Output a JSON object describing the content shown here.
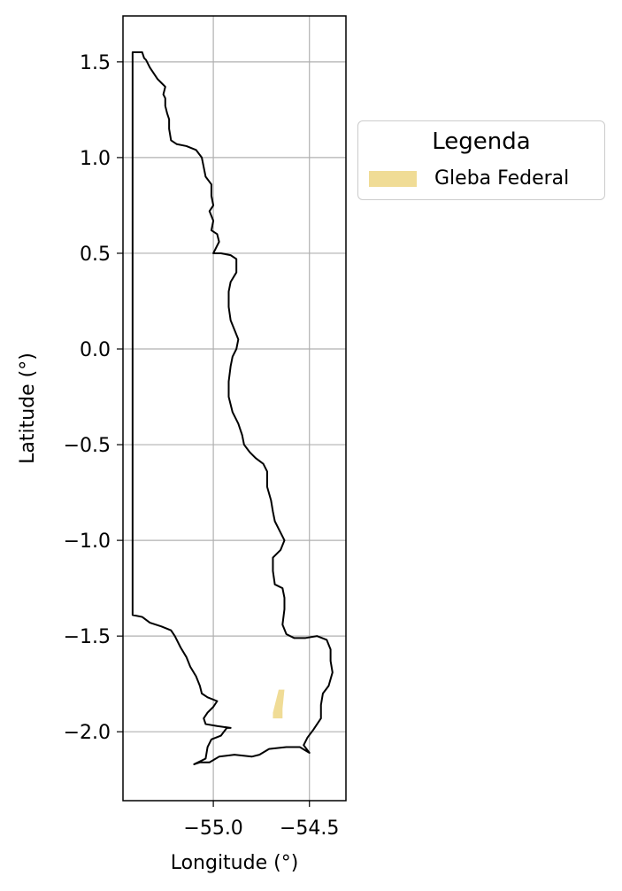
{
  "chart_data": {
    "type": "map",
    "xlabel": "Longitude (°)",
    "ylabel": "Latitude (°)",
    "xlim": [
      -55.47,
      -54.31
    ],
    "ylim": [
      -2.36,
      1.74
    ],
    "xticks": [
      -55.0,
      -54.5
    ],
    "xtick_labels": [
      "−55.0",
      "−54.5"
    ],
    "yticks": [
      1.5,
      1.0,
      0.5,
      0.0,
      -0.5,
      -1.0,
      -1.5,
      -2.0
    ],
    "ytick_labels": [
      "1.5",
      "1.0",
      "0.5",
      "0.0",
      "−0.5",
      "−1.0",
      "−1.5",
      "−2.0"
    ],
    "grid": true,
    "legend": {
      "title": "Legenda",
      "placement": "outside-right-top",
      "entries": [
        {
          "label": "Gleba Federal",
          "color": "#f0dc96"
        }
      ]
    },
    "boundary": {
      "stroke": "#000000",
      "coordinates": [
        [
          -55.42,
          1.55
        ],
        [
          -55.37,
          1.55
        ],
        [
          -55.36,
          1.52
        ],
        [
          -55.35,
          1.51
        ],
        [
          -55.33,
          1.47
        ],
        [
          -55.31,
          1.44
        ],
        [
          -55.29,
          1.41
        ],
        [
          -55.27,
          1.39
        ],
        [
          -55.25,
          1.37
        ],
        [
          -55.26,
          1.33
        ],
        [
          -55.25,
          1.31
        ],
        [
          -55.25,
          1.27
        ],
        [
          -55.24,
          1.23
        ],
        [
          -55.23,
          1.2
        ],
        [
          -55.23,
          1.15
        ],
        [
          -55.22,
          1.09
        ],
        [
          -55.19,
          1.07
        ],
        [
          -55.14,
          1.06
        ],
        [
          -55.09,
          1.04
        ],
        [
          -55.06,
          1.0
        ],
        [
          -55.05,
          0.95
        ],
        [
          -55.04,
          0.9
        ],
        [
          -55.01,
          0.86
        ],
        [
          -55.01,
          0.8
        ],
        [
          -55.0,
          0.75
        ],
        [
          -55.02,
          0.72
        ],
        [
          -55.0,
          0.67
        ],
        [
          -55.01,
          0.62
        ],
        [
          -54.98,
          0.6
        ],
        [
          -54.97,
          0.56
        ],
        [
          -55.0,
          0.5
        ],
        [
          -54.96,
          0.5
        ],
        [
          -54.91,
          0.49
        ],
        [
          -54.88,
          0.47
        ],
        [
          -54.88,
          0.4
        ],
        [
          -54.91,
          0.35
        ],
        [
          -54.92,
          0.3
        ],
        [
          -54.92,
          0.22
        ],
        [
          -54.91,
          0.15
        ],
        [
          -54.89,
          0.1
        ],
        [
          -54.87,
          0.05
        ],
        [
          -54.88,
          0.0
        ],
        [
          -54.9,
          -0.04
        ],
        [
          -54.91,
          -0.09
        ],
        [
          -54.92,
          -0.17
        ],
        [
          -54.92,
          -0.25
        ],
        [
          -54.9,
          -0.33
        ],
        [
          -54.87,
          -0.39
        ],
        [
          -54.85,
          -0.45
        ],
        [
          -54.84,
          -0.5
        ],
        [
          -54.81,
          -0.54
        ],
        [
          -54.78,
          -0.57
        ],
        [
          -54.74,
          -0.6
        ],
        [
          -54.72,
          -0.64
        ],
        [
          -54.72,
          -0.72
        ],
        [
          -54.7,
          -0.79
        ],
        [
          -54.69,
          -0.85
        ],
        [
          -54.68,
          -0.9
        ],
        [
          -54.65,
          -0.96
        ],
        [
          -54.63,
          -1.0
        ],
        [
          -54.65,
          -1.05
        ],
        [
          -54.69,
          -1.09
        ],
        [
          -54.69,
          -1.16
        ],
        [
          -54.68,
          -1.23
        ],
        [
          -54.64,
          -1.25
        ],
        [
          -54.63,
          -1.3
        ],
        [
          -54.63,
          -1.36
        ],
        [
          -54.64,
          -1.44
        ],
        [
          -54.62,
          -1.49
        ],
        [
          -54.58,
          -1.51
        ],
        [
          -54.52,
          -1.51
        ],
        [
          -54.46,
          -1.5
        ],
        [
          -54.41,
          -1.52
        ],
        [
          -54.39,
          -1.57
        ],
        [
          -54.39,
          -1.63
        ],
        [
          -54.38,
          -1.69
        ],
        [
          -54.4,
          -1.76
        ],
        [
          -54.43,
          -1.8
        ],
        [
          -54.44,
          -1.86
        ],
        [
          -54.44,
          -1.93
        ],
        [
          -54.48,
          -1.99
        ],
        [
          -54.51,
          -2.03
        ],
        [
          -54.53,
          -2.07
        ],
        [
          -54.5,
          -2.11
        ],
        [
          -54.55,
          -2.08
        ],
        [
          -54.62,
          -2.08
        ],
        [
          -54.71,
          -2.09
        ],
        [
          -54.76,
          -2.12
        ],
        [
          -54.8,
          -2.13
        ],
        [
          -54.89,
          -2.12
        ],
        [
          -54.97,
          -2.13
        ],
        [
          -55.02,
          -2.16
        ],
        [
          -55.07,
          -2.16
        ],
        [
          -55.1,
          -2.17
        ],
        [
          -55.04,
          -2.14
        ],
        [
          -55.03,
          -2.08
        ],
        [
          -55.01,
          -2.04
        ],
        [
          -54.96,
          -2.02
        ],
        [
          -54.93,
          -1.98
        ],
        [
          -54.91,
          -1.98
        ],
        [
          -54.98,
          -1.97
        ],
        [
          -55.04,
          -1.96
        ],
        [
          -55.05,
          -1.93
        ],
        [
          -55.03,
          -1.9
        ],
        [
          -55.0,
          -1.87
        ],
        [
          -54.98,
          -1.84
        ],
        [
          -55.03,
          -1.82
        ],
        [
          -55.06,
          -1.8
        ],
        [
          -55.07,
          -1.76
        ],
        [
          -55.09,
          -1.71
        ],
        [
          -55.12,
          -1.66
        ],
        [
          -55.14,
          -1.61
        ],
        [
          -55.17,
          -1.56
        ],
        [
          -55.2,
          -1.5
        ],
        [
          -55.22,
          -1.47
        ],
        [
          -55.27,
          -1.45
        ],
        [
          -55.33,
          -1.43
        ],
        [
          -55.37,
          -1.4
        ],
        [
          -55.42,
          -1.39
        ],
        [
          -55.42,
          1.55
        ]
      ]
    },
    "polygons": [
      {
        "label": "Gleba Federal",
        "color": "#f0dc96",
        "coordinates": [
          [
            -54.69,
            -1.9
          ],
          [
            -54.66,
            -1.78
          ],
          [
            -54.63,
            -1.78
          ],
          [
            -54.64,
            -1.88
          ],
          [
            -54.64,
            -1.93
          ],
          [
            -54.69,
            -1.93
          ]
        ]
      }
    ]
  }
}
